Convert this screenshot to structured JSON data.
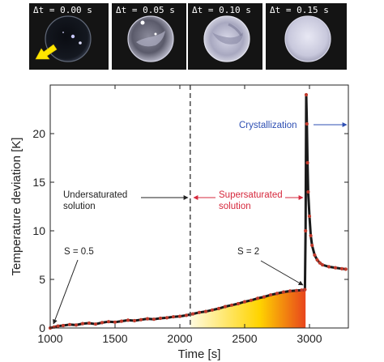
{
  "panels": [
    {
      "label": "Δt = 0.00 s",
      "state": "clear"
    },
    {
      "label": "Δt = 0.05 s",
      "state": "nucleating"
    },
    {
      "label": "Δt = 0.10 s",
      "state": "growing"
    },
    {
      "label": "Δt = 0.15 s",
      "state": "crystallized"
    }
  ],
  "colors": {
    "line": "#1a1a1a",
    "markers": "#c0392b",
    "crystallization": "#2e4fb3",
    "supersaturated": "#d6283c",
    "undersaturated": "#222222",
    "arrow_yellow": "#ffe600",
    "gradient_start": "#fffbe0",
    "gradient_mid": "#ffd400",
    "gradient_end": "#e8451c"
  },
  "chart_data": {
    "type": "line",
    "xlabel": "Time [s]",
    "ylabel": "Temperature deviation [K]",
    "xlim": [
      1000,
      3300
    ],
    "ylim": [
      0,
      25
    ],
    "xticks": [
      1000,
      1500,
      2000,
      2500,
      3000
    ],
    "yticks": [
      0,
      5,
      10,
      15,
      20
    ],
    "grid": false,
    "series": [
      {
        "x": [
          1000,
          1030,
          1060,
          1100,
          1150,
          1200,
          1250,
          1300,
          1350,
          1400,
          1450,
          1500,
          1550,
          1600,
          1650,
          1700,
          1750,
          1800,
          1850,
          1900,
          1950,
          2000,
          2050,
          2100,
          2150,
          2200,
          2250,
          2300,
          2350,
          2400,
          2450,
          2500,
          2550,
          2600,
          2650,
          2700,
          2750,
          2800,
          2850,
          2900,
          2940,
          2965,
          2970,
          2975,
          2980,
          2985,
          2990,
          3000,
          3010,
          3020,
          3040,
          3060,
          3080,
          3100,
          3150,
          3200,
          3250,
          3280
        ],
        "y": [
          0.0,
          0.1,
          0.2,
          0.25,
          0.35,
          0.3,
          0.45,
          0.5,
          0.4,
          0.55,
          0.65,
          0.6,
          0.7,
          0.8,
          0.75,
          0.85,
          0.95,
          0.9,
          1.0,
          1.05,
          1.15,
          1.2,
          1.3,
          1.45,
          1.6,
          1.7,
          1.85,
          2.0,
          2.2,
          2.35,
          2.5,
          2.7,
          2.85,
          3.05,
          3.2,
          3.4,
          3.55,
          3.7,
          3.8,
          3.85,
          3.9,
          3.95,
          10.0,
          24.0,
          21.0,
          17.0,
          14.0,
          11.5,
          9.5,
          8.5,
          7.5,
          7.0,
          6.7,
          6.5,
          6.3,
          6.2,
          6.1,
          6.05
        ]
      }
    ],
    "vline_x": 2080,
    "shaded_region": {
      "x_from": 2080,
      "x_to": 2970
    },
    "annotations": {
      "s_low": "S = 0.5",
      "s_high": "S = 2",
      "undersaturated": [
        "Undersaturated",
        "solution"
      ],
      "supersaturated": [
        "Supersaturated",
        "solution"
      ],
      "crystallization": "Crystallization"
    }
  }
}
